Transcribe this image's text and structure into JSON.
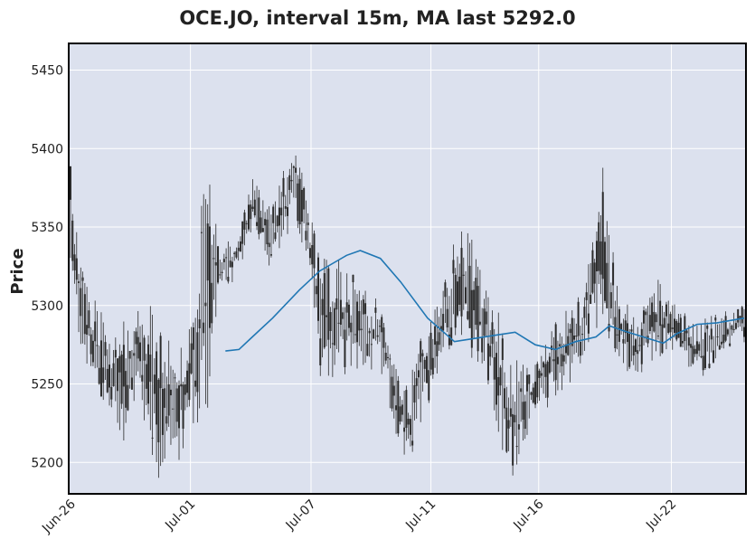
{
  "header": {
    "title": "OCE.JO, interval 15m, MA last 5292.0"
  },
  "colors": {
    "plot_bg": "#dce1ee",
    "grid": "#ffffff",
    "candle": "#2b2b2b",
    "ma_line": "#2077b4",
    "frame": "#000000"
  },
  "chart_data": {
    "type": "candlestick",
    "title": "OCE.JO, interval 15m, MA last 5292.0",
    "ylabel": "Price",
    "xlabel": "",
    "ylim": [
      5180,
      5467
    ],
    "yticks": [
      5200,
      5250,
      5300,
      5350,
      5400,
      5450
    ],
    "ytick_labels": [
      "5200",
      "5250",
      "5300",
      "5350",
      "5400",
      "5450"
    ],
    "xtick_labels": [
      "Jun-26",
      "Jul-01",
      "Jul-07",
      "Jul-11",
      "Jul-16",
      "Jul-22"
    ],
    "grid": true,
    "ma_label": "MA last 5292.0",
    "price_envelope": [
      {
        "t": 0,
        "low": 5300,
        "high": 5403
      },
      {
        "t": 0.01,
        "low": 5280,
        "high": 5348
      },
      {
        "t": 0.03,
        "low": 5250,
        "high": 5310
      },
      {
        "t": 0.06,
        "low": 5220,
        "high": 5290
      },
      {
        "t": 0.08,
        "low": 5210,
        "high": 5300
      },
      {
        "t": 0.1,
        "low": 5240,
        "high": 5300
      },
      {
        "t": 0.13,
        "low": 5185,
        "high": 5300
      },
      {
        "t": 0.16,
        "low": 5200,
        "high": 5260
      },
      {
        "t": 0.2,
        "low": 5215,
        "high": 5397
      },
      {
        "t": 0.22,
        "low": 5300,
        "high": 5345
      },
      {
        "t": 0.25,
        "low": 5320,
        "high": 5345
      },
      {
        "t": 0.27,
        "low": 5350,
        "high": 5385
      },
      {
        "t": 0.3,
        "low": 5320,
        "high": 5365
      },
      {
        "t": 0.33,
        "low": 5350,
        "high": 5405
      },
      {
        "t": 0.35,
        "low": 5330,
        "high": 5375
      },
      {
        "t": 0.37,
        "low": 5255,
        "high": 5330
      },
      {
        "t": 0.4,
        "low": 5250,
        "high": 5330
      },
      {
        "t": 0.43,
        "low": 5255,
        "high": 5315
      },
      {
        "t": 0.46,
        "low": 5255,
        "high": 5305
      },
      {
        "t": 0.5,
        "low": 5188,
        "high": 5250
      },
      {
        "t": 0.52,
        "low": 5220,
        "high": 5280
      },
      {
        "t": 0.55,
        "low": 5265,
        "high": 5310
      },
      {
        "t": 0.58,
        "low": 5280,
        "high": 5360
      },
      {
        "t": 0.62,
        "low": 5245,
        "high": 5320
      },
      {
        "t": 0.65,
        "low": 5182,
        "high": 5275
      },
      {
        "t": 0.68,
        "low": 5220,
        "high": 5260
      },
      {
        "t": 0.72,
        "low": 5240,
        "high": 5290
      },
      {
        "t": 0.76,
        "low": 5260,
        "high": 5310
      },
      {
        "t": 0.79,
        "low": 5290,
        "high": 5393
      },
      {
        "t": 0.81,
        "low": 5260,
        "high": 5320
      },
      {
        "t": 0.84,
        "low": 5250,
        "high": 5290
      },
      {
        "t": 0.87,
        "low": 5265,
        "high": 5320
      },
      {
        "t": 0.9,
        "low": 5270,
        "high": 5300
      },
      {
        "t": 0.93,
        "low": 5250,
        "high": 5290
      },
      {
        "t": 0.96,
        "low": 5265,
        "high": 5295
      },
      {
        "t": 1.0,
        "low": 5275,
        "high": 5305
      }
    ],
    "moving_average": [
      {
        "t": 0.23,
        "value": 5271
      },
      {
        "t": 0.25,
        "value": 5272
      },
      {
        "t": 0.27,
        "value": 5280
      },
      {
        "t": 0.3,
        "value": 5292
      },
      {
        "t": 0.34,
        "value": 5310
      },
      {
        "t": 0.37,
        "value": 5322
      },
      {
        "t": 0.41,
        "value": 5332
      },
      {
        "t": 0.43,
        "value": 5335
      },
      {
        "t": 0.46,
        "value": 5330
      },
      {
        "t": 0.49,
        "value": 5315
      },
      {
        "t": 0.53,
        "value": 5292
      },
      {
        "t": 0.57,
        "value": 5277
      },
      {
        "t": 0.6,
        "value": 5279
      },
      {
        "t": 0.63,
        "value": 5281
      },
      {
        "t": 0.66,
        "value": 5283
      },
      {
        "t": 0.69,
        "value": 5275
      },
      {
        "t": 0.72,
        "value": 5272
      },
      {
        "t": 0.75,
        "value": 5277
      },
      {
        "t": 0.78,
        "value": 5280
      },
      {
        "t": 0.8,
        "value": 5287
      },
      {
        "t": 0.82,
        "value": 5284
      },
      {
        "t": 0.85,
        "value": 5280
      },
      {
        "t": 0.88,
        "value": 5276
      },
      {
        "t": 0.9,
        "value": 5282
      },
      {
        "t": 0.93,
        "value": 5288
      },
      {
        "t": 0.96,
        "value": 5289
      },
      {
        "t": 1.0,
        "value": 5292
      }
    ]
  }
}
